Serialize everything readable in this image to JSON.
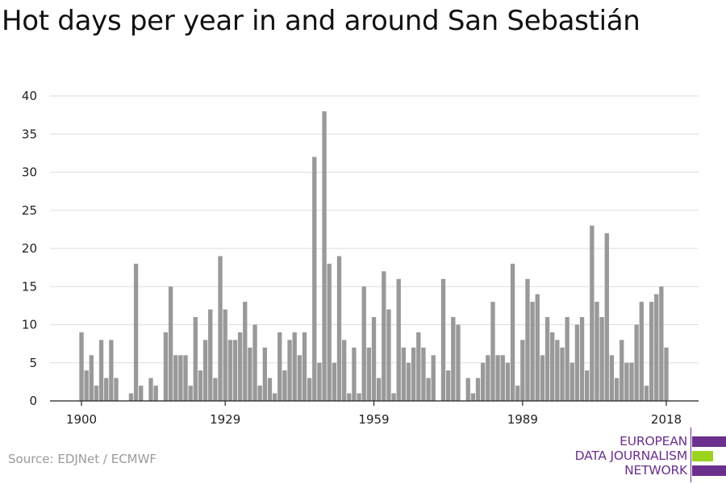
{
  "title": "Hot days per year in and around San Sebastián",
  "source": "Source: EDJNet / ECMWF",
  "logo": {
    "lines": [
      "EUROPEAN",
      "DATA JOURNALISM",
      "NETWORK"
    ],
    "colors": {
      "purple": "#6b2f8e",
      "green": "#9bd21e"
    }
  },
  "chart_data": {
    "type": "bar",
    "x_start": 1900,
    "x_end": 2018,
    "xticks": [
      1900,
      1929,
      1959,
      1989,
      2018
    ],
    "yticks": [
      0,
      5,
      10,
      15,
      20,
      25,
      30,
      35,
      40
    ],
    "ylim": [
      0,
      40
    ],
    "grid": true,
    "bar_color": "#999999",
    "values": [
      9,
      4,
      6,
      2,
      8,
      3,
      8,
      3,
      0,
      0,
      1,
      18,
      2,
      0,
      3,
      2,
      0,
      9,
      15,
      6,
      6,
      6,
      2,
      11,
      4,
      8,
      12,
      3,
      19,
      12,
      8,
      8,
      9,
      13,
      7,
      10,
      2,
      7,
      3,
      1,
      9,
      4,
      8,
      9,
      6,
      9,
      3,
      32,
      5,
      38,
      18,
      5,
      19,
      8,
      1,
      7,
      1,
      15,
      7,
      11,
      3,
      17,
      12,
      1,
      16,
      7,
      5,
      7,
      9,
      7,
      3,
      6,
      0,
      16,
      4,
      11,
      10,
      0,
      3,
      1,
      3,
      5,
      6,
      13,
      6,
      6,
      5,
      18,
      2,
      8,
      16,
      13,
      14,
      6,
      11,
      9,
      8,
      7,
      11,
      5,
      10,
      11,
      4,
      23,
      13,
      11,
      22,
      6,
      3,
      8,
      5,
      5,
      10,
      13,
      2,
      13,
      14,
      15,
      7
    ]
  }
}
